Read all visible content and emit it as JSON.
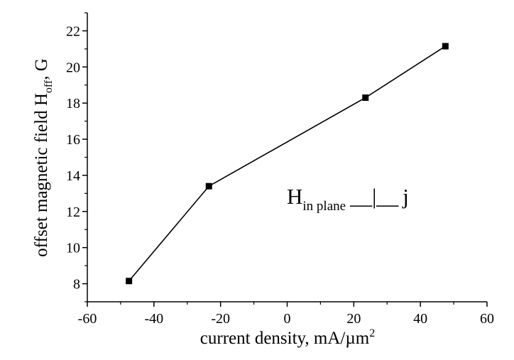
{
  "chart_data": {
    "type": "line",
    "title": "",
    "xlabel": {
      "main": "current density, mA/µm",
      "sup": "2"
    },
    "ylabel": {
      "main": "offset magnetic field H",
      "sub": "off",
      "tail": ", G"
    },
    "xlim": [
      -60,
      60
    ],
    "ylim": [
      7,
      23
    ],
    "xticks": [
      -60,
      -40,
      -20,
      0,
      20,
      40,
      60
    ],
    "yticks": [
      8,
      10,
      12,
      14,
      16,
      18,
      20,
      22
    ],
    "grid": false,
    "marker": "square",
    "series": [
      {
        "x": [
          -47.5,
          -23.5,
          23.5,
          47.5
        ],
        "y": [
          8.15,
          13.4,
          18.3,
          21.15
        ],
        "color": "#000000"
      }
    ],
    "annotation": {
      "main": "H",
      "sub": "in plane",
      "perp": "__|__",
      "tail": "j"
    }
  }
}
